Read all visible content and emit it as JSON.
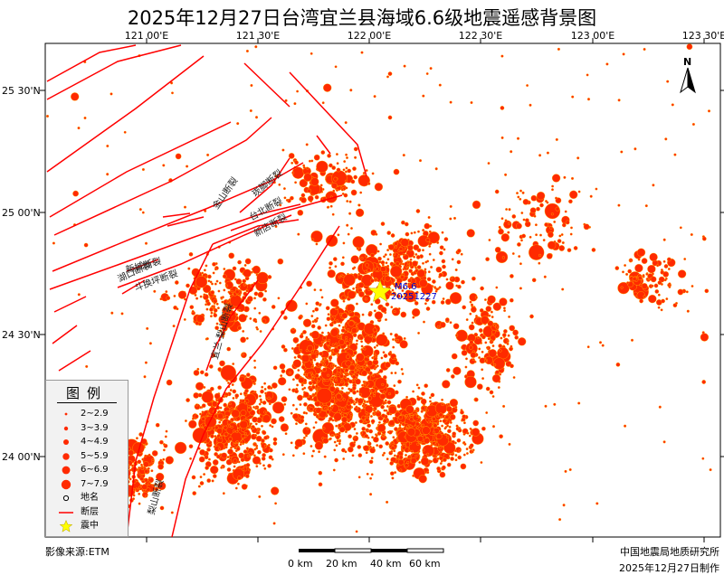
{
  "title": "2025年12月27日台湾宜兰县海域6.6级地震遥感背景图",
  "colors": {
    "event": "#ff2a00",
    "event_stroke": "#ffd400",
    "fault": "#ff0000",
    "epicenter": "#ffff00",
    "label_blue": "#0000cc"
  },
  "axes": {
    "lon_ticks": [
      "121 00'E",
      "121 30'E",
      "122 00'E",
      "122 30'E",
      "123 00'E",
      "123 30'E"
    ],
    "lat_ticks": [
      "25 30'N",
      "25 00'N",
      "24 30'N",
      "24 00'N"
    ]
  },
  "north_arrow": {
    "label": "N",
    "icon": "north-arrow-icon"
  },
  "epicenter": {
    "label_mag": "M6.6",
    "label_date": "20251227"
  },
  "faults": [
    {
      "name": "金山断裂"
    },
    {
      "name": "崁脚断裂"
    },
    {
      "name": "台北断裂"
    },
    {
      "name": "新店断裂"
    },
    {
      "name": "新城断裂"
    },
    {
      "name": "湖口断裂"
    },
    {
      "name": "斗换坪断裂"
    },
    {
      "name": "宜兰-梨山断裂"
    },
    {
      "name": "梨山断裂"
    }
  ],
  "legend": {
    "title": "图例",
    "items": [
      {
        "label": "2~2.9",
        "type": "quake",
        "magnitude": 2
      },
      {
        "label": "3~3.9",
        "type": "quake",
        "magnitude": 3
      },
      {
        "label": "4~4.9",
        "type": "quake",
        "magnitude": 4
      },
      {
        "label": "5~5.9",
        "type": "quake",
        "magnitude": 5
      },
      {
        "label": "6~6.9",
        "type": "quake",
        "magnitude": 6
      },
      {
        "label": "7~7.9",
        "type": "quake",
        "magnitude": 7
      },
      {
        "label": "地名",
        "type": "place"
      },
      {
        "label": "断层",
        "type": "fault"
      },
      {
        "label": "震中",
        "type": "epicenter"
      }
    ]
  },
  "scale_bar": {
    "labels": [
      "0 km",
      "20 km",
      "40 km",
      "60 km"
    ]
  },
  "footer": {
    "source": "影像来源:ETM",
    "producer": "中国地震局地质研究所",
    "date": "2025年12月27日制作"
  }
}
